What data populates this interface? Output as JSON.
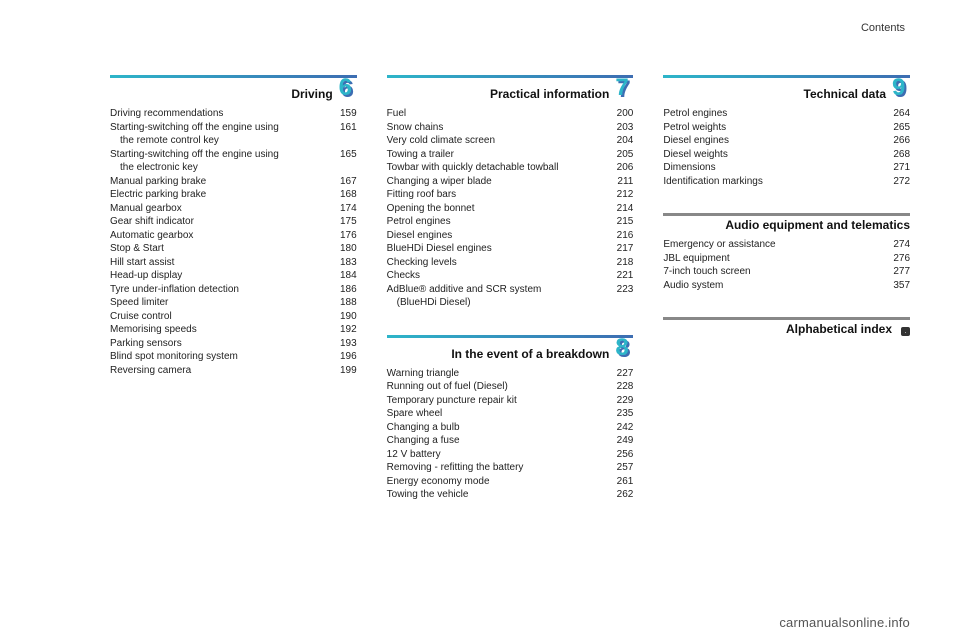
{
  "header": {
    "label": "Contents"
  },
  "watermark": "carmanualsonline.info",
  "rule_gradient": {
    "from": "#2db5c9",
    "to": "#3d6db2"
  },
  "columns": [
    {
      "sections": [
        {
          "title": "Driving",
          "chapter": "6",
          "has_rule": true,
          "entries": [
            {
              "t": "Driving recommendations",
              "p": "159"
            },
            {
              "t": "Starting-switching off the engine using",
              "t2": "the remote control key",
              "p": "161"
            },
            {
              "t": "Starting-switching off the engine using",
              "t2": "the electronic key",
              "p": "165"
            },
            {
              "t": "Manual parking brake",
              "p": "167"
            },
            {
              "t": "Electric parking brake",
              "p": "168"
            },
            {
              "t": "Manual gearbox",
              "p": "174"
            },
            {
              "t": "Gear shift indicator",
              "p": "175"
            },
            {
              "t": "Automatic gearbox",
              "p": "176"
            },
            {
              "t": "Stop & Start",
              "p": "180"
            },
            {
              "t": "Hill start assist",
              "p": "183"
            },
            {
              "t": "Head-up display",
              "p": "184"
            },
            {
              "t": "Tyre under-inflation detection",
              "p": "186"
            },
            {
              "t": "Speed limiter",
              "p": "188"
            },
            {
              "t": "Cruise control",
              "p": "190"
            },
            {
              "t": "Memorising speeds",
              "p": "192"
            },
            {
              "t": "Parking sensors",
              "p": "193"
            },
            {
              "t": "Blind spot monitoring system",
              "p": "196"
            },
            {
              "t": "Reversing camera",
              "p": "199"
            }
          ]
        }
      ]
    },
    {
      "sections": [
        {
          "title": "Practical information",
          "chapter": "7",
          "has_rule": true,
          "entries": [
            {
              "t": "Fuel",
              "p": "200"
            },
            {
              "t": "Snow chains",
              "p": "203"
            },
            {
              "t": "Very cold climate screen",
              "p": "204"
            },
            {
              "t": "Towing a trailer",
              "p": "205"
            },
            {
              "t": "Towbar with quickly detachable towball",
              "p": "206"
            },
            {
              "t": "Changing a wiper blade",
              "p": "211"
            },
            {
              "t": "Fitting roof bars",
              "p": "212"
            },
            {
              "t": "Opening the bonnet",
              "p": "214"
            },
            {
              "t": "Petrol engines",
              "p": "215"
            },
            {
              "t": "Diesel engines",
              "p": "216"
            },
            {
              "t": "BlueHDi Diesel engines",
              "p": "217"
            },
            {
              "t": "Checking levels",
              "p": "218"
            },
            {
              "t": "Checks",
              "p": "221"
            },
            {
              "t": "AdBlue® additive and SCR system",
              "t2": "(BlueHDi Diesel)",
              "p": "223"
            }
          ]
        },
        {
          "title": "In the event of a breakdown",
          "chapter": "8",
          "has_rule": true,
          "entries": [
            {
              "t": "Warning triangle",
              "p": "227"
            },
            {
              "t": "Running out of fuel (Diesel)",
              "p": "228"
            },
            {
              "t": "Temporary puncture repair kit",
              "p": "229"
            },
            {
              "t": "Spare wheel",
              "p": "235"
            },
            {
              "t": "Changing a bulb",
              "p": "242"
            },
            {
              "t": "Changing a fuse",
              "p": "249"
            },
            {
              "t": "12 V battery",
              "p": "256"
            },
            {
              "t": "Removing - refitting the battery",
              "p": "257"
            },
            {
              "t": "Energy economy mode",
              "p": "261"
            },
            {
              "t": "Towing the vehicle",
              "p": "262"
            }
          ]
        }
      ]
    },
    {
      "sections": [
        {
          "title": "Technical data",
          "chapter": "9",
          "has_rule": true,
          "entries": [
            {
              "t": "Petrol engines",
              "p": "264"
            },
            {
              "t": "Petrol weights",
              "p": "265"
            },
            {
              "t": "Diesel engines",
              "p": "266"
            },
            {
              "t": "Diesel weights",
              "p": "268"
            },
            {
              "t": "Dimensions",
              "p": "271"
            },
            {
              "t": "Identification markings",
              "p": "272"
            }
          ]
        },
        {
          "title": "Audio equipment and telematics",
          "chapter": "",
          "has_rule": true,
          "plain_rule": true,
          "entries": [
            {
              "t": "Emergency or assistance",
              "p": "274"
            },
            {
              "t": "JBL equipment",
              "p": "276"
            },
            {
              "t": "7-inch touch screen",
              "p": "277"
            },
            {
              "t": "Audio system",
              "p": "357"
            }
          ]
        },
        {
          "title": "Alphabetical index",
          "chapter": "",
          "has_rule": true,
          "plain_rule": true,
          "index_badge": true,
          "entries": []
        }
      ]
    }
  ]
}
